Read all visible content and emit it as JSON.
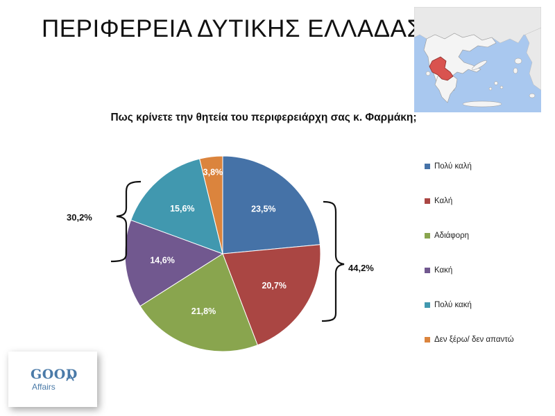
{
  "page_title": "ΠΕΡΙΦΕΡΕΙΑ ΔΥΤΙΚΗΣ ΕΛΛΑΔΑΣ",
  "chart_data": {
    "type": "pie",
    "title": "Πως κρίνετε την θητεία του περιφερειάρχη σας κ. Φαρμάκη;",
    "slices": [
      {
        "label": "Πολύ καλή",
        "value": 23.5,
        "display": "23,5%",
        "color": "#4572a7"
      },
      {
        "label": "Καλή",
        "value": 20.7,
        "display": "20,7%",
        "color": "#aa4643"
      },
      {
        "label": "Αδιάφορη",
        "value": 21.8,
        "display": "21,8%",
        "color": "#89a54e"
      },
      {
        "label": "Κακή",
        "value": 14.6,
        "display": "14,6%",
        "color": "#71588f"
      },
      {
        "label": "Πολύ κακή",
        "value": 15.6,
        "display": "15,6%",
        "color": "#4198af"
      },
      {
        "label": "Δεν ξέρω/ δεν απαντώ",
        "value": 3.8,
        "display": "3,8%",
        "color": "#db843d"
      }
    ],
    "legend_position": "right",
    "annotations": [
      {
        "text": "44,2%",
        "groups": [
          "Πολύ καλή",
          "Καλή"
        ],
        "side": "right"
      },
      {
        "text": "30,2%",
        "groups": [
          "Κακή",
          "Πολύ κακή"
        ],
        "side": "left"
      }
    ]
  },
  "map": {
    "sea_color": "#a9c8ef",
    "land_color": "#f4f4f4",
    "highlight_color": "#d9534f"
  },
  "logo": {
    "word1": "GOOD",
    "word2": "Affairs",
    "color": "#4a7aa8"
  }
}
